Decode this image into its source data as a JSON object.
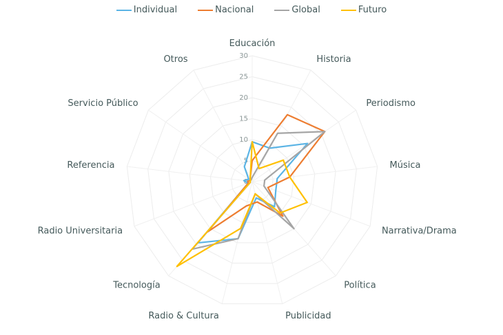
{
  "chart_data": {
    "type": "radar",
    "title": "",
    "categories": [
      "Educación",
      "Historia",
      "Periodismo",
      "Música",
      "Narrativa/Drama",
      "Política",
      "Publicidad",
      "Radio & Cultura",
      "Tecnología",
      "Radio Universitaria",
      "Referencia",
      "Servicio Público",
      "Otros"
    ],
    "series": [
      {
        "name": "Individual",
        "color": "#5BB4E5",
        "values": [
          9.5,
          9,
          16,
          6,
          6,
          8,
          4,
          14,
          19.5,
          1,
          2,
          1,
          4
        ]
      },
      {
        "name": "Nacional",
        "color": "#ED7D31",
        "values": [
          5,
          18,
          21,
          9,
          4,
          11,
          5,
          6,
          16,
          1,
          1,
          0.5,
          1
        ]
      },
      {
        "name": "Global",
        "color": "#A5A5A5",
        "values": [
          1,
          13,
          21,
          3,
          3,
          15,
          3,
          14,
          21.5,
          0.5,
          0.5,
          0.5,
          0.5
        ]
      },
      {
        "name": "Futuro",
        "color": "#FFC000",
        "values": [
          9.5,
          3.5,
          9,
          9,
          14,
          10,
          3,
          11.5,
          27,
          0.5,
          0.5,
          0.5,
          1
        ]
      }
    ],
    "radial_ticks": [
      0,
      5,
      10,
      15,
      20,
      25,
      30
    ],
    "rlim": [
      0,
      30
    ],
    "grid": true,
    "legend_position": "top"
  },
  "legend": {
    "items": [
      {
        "label": "Individual",
        "color": "#5BB4E5"
      },
      {
        "label": "Nacional",
        "color": "#ED7D31"
      },
      {
        "label": "Global",
        "color": "#A5A5A5"
      },
      {
        "label": "Futuro",
        "color": "#FFC000"
      }
    ]
  }
}
